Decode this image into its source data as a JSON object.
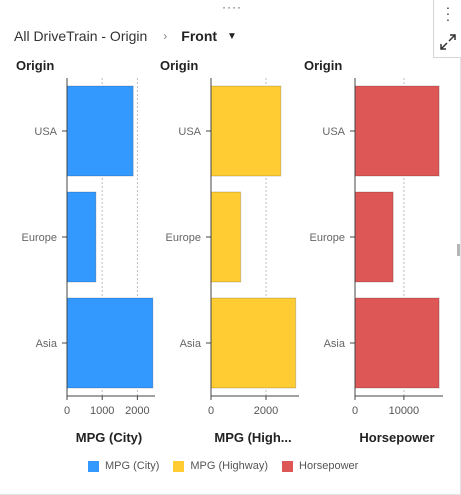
{
  "header": {
    "breadcrumb_root": "All DriveTrain - Origin",
    "breadcrumb_sep": "›",
    "breadcrumb_current": "Front"
  },
  "icons": {
    "drag": "drag-handle-icon",
    "menu": "kebab-menu-icon",
    "expand": "expand-icon",
    "dropdown": "caret-down-icon"
  },
  "chart_data": {
    "type": "bar",
    "orientation": "horizontal",
    "categories": [
      "USA",
      "Europe",
      "Asia"
    ],
    "category_axis_title": "Origin",
    "grid": true,
    "panels": [
      {
        "name": "MPG (City)",
        "axis_title": "MPG (City)",
        "color": "#3399ff",
        "values": [
          1880,
          820,
          2440
        ],
        "xlim": [
          0,
          2500
        ],
        "ticks": [
          0,
          1000,
          2000
        ]
      },
      {
        "name": "MPG (Highway)",
        "axis_title": "MPG (High...",
        "color": "#ffcc33",
        "values": [
          2540,
          1080,
          3080
        ],
        "xlim": [
          0,
          3200
        ],
        "ticks": [
          0,
          2000
        ]
      },
      {
        "name": "Horsepower",
        "axis_title": "Horsepower",
        "color": "#dd5757",
        "values": [
          17200,
          7800,
          17200
        ],
        "xlim": [
          0,
          18000
        ],
        "ticks": [
          0,
          10000
        ]
      }
    ],
    "legend": {
      "placement": "bottom",
      "entries": [
        "MPG (City)",
        "MPG (Highway)",
        "Horsepower"
      ]
    }
  }
}
